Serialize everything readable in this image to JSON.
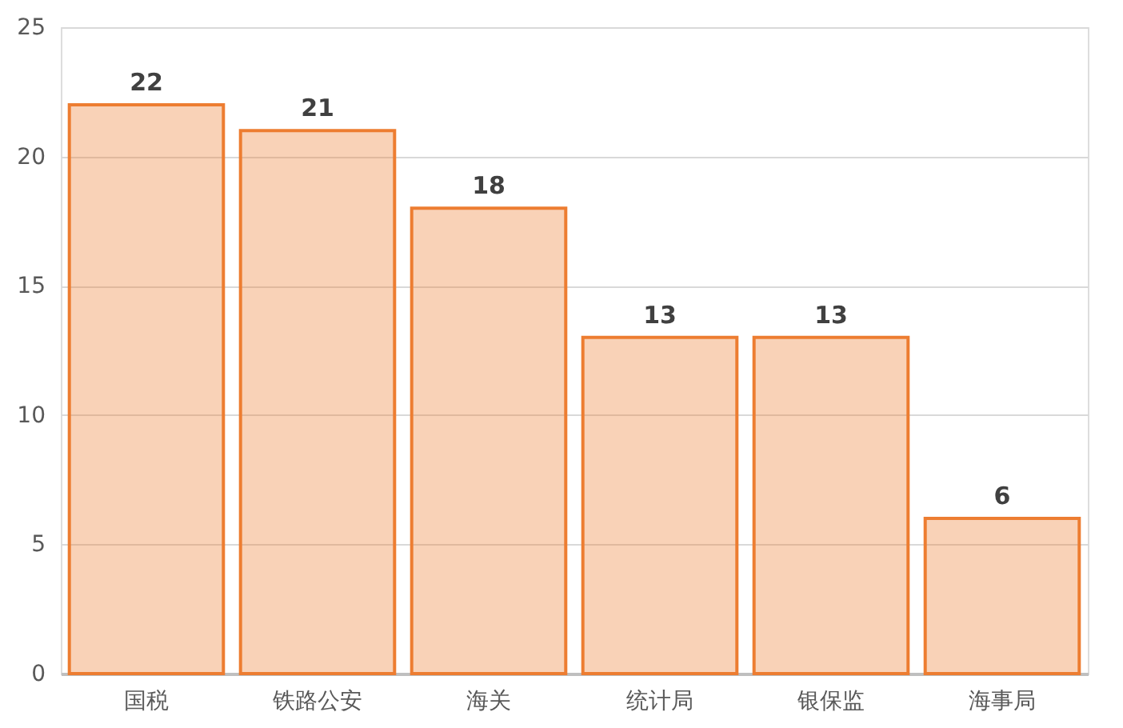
{
  "chart_data": {
    "type": "bar",
    "categories": [
      "国税",
      "铁路公安",
      "海关",
      "统计局",
      "银保监",
      "海事局"
    ],
    "values": [
      22,
      21,
      18,
      13,
      13,
      6
    ],
    "color": "#ed7d31",
    "ylim": [
      0,
      25
    ],
    "yticks": [
      0,
      5,
      10,
      15,
      20,
      25
    ],
    "grid": "y",
    "data_labels": true
  }
}
